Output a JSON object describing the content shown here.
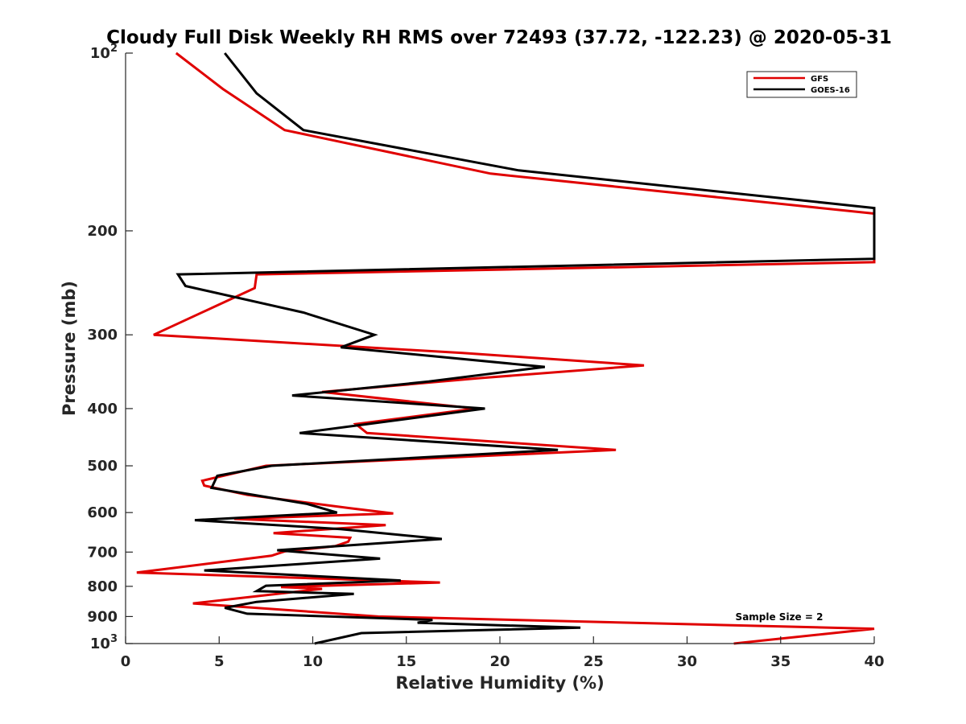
{
  "chart_data": {
    "type": "line",
    "title": "Cloudy Full Disk Weekly RH RMS over 72493 (37.72, -122.23) @ 2020-05-31",
    "xlabel": "Relative Humidity (%)",
    "ylabel": "Pressure (mb)",
    "xlim": [
      0,
      40
    ],
    "ylim": [
      100,
      1000
    ],
    "y_scale": "log",
    "y_reversed": true,
    "grid": false,
    "legend_position": "top-right",
    "x_ticks": [
      "0",
      "5",
      "10",
      "15",
      "20",
      "25",
      "30",
      "35",
      "40"
    ],
    "y_ticks": [
      {
        "value": 100,
        "base": "10",
        "exp": "2"
      },
      {
        "value": 200,
        "label": "200"
      },
      {
        "value": 300,
        "label": "300"
      },
      {
        "value": 400,
        "label": "400"
      },
      {
        "value": 500,
        "label": "500"
      },
      {
        "value": 600,
        "label": "600"
      },
      {
        "value": 700,
        "label": "700"
      },
      {
        "value": 800,
        "label": "800"
      },
      {
        "value": 900,
        "label": "900"
      },
      {
        "value": 1000,
        "base": "10",
        "exp": "3"
      }
    ],
    "annotation": "Sample Size = 2",
    "series": [
      {
        "name": "GFS",
        "color": "#e00000",
        "points": [
          [
            2.7,
            100
          ],
          [
            5.2,
            115
          ],
          [
            8.5,
            135
          ],
          [
            19.5,
            160
          ],
          [
            40,
            187
          ],
          [
            40,
            226
          ],
          [
            7.0,
            237
          ],
          [
            6.9,
            250
          ],
          [
            1.5,
            300
          ],
          [
            18.0,
            322
          ],
          [
            27.7,
            338
          ],
          [
            19.0,
            355
          ],
          [
            10.5,
            375
          ],
          [
            18.7,
            400
          ],
          [
            12.3,
            425
          ],
          [
            12.9,
            440
          ],
          [
            26.2,
            470
          ],
          [
            7.5,
            500
          ],
          [
            4.1,
            530
          ],
          [
            4.2,
            540
          ],
          [
            6.5,
            560
          ],
          [
            12.0,
            590
          ],
          [
            14.3,
            602
          ],
          [
            5.8,
            615
          ],
          [
            13.9,
            630
          ],
          [
            7.9,
            650
          ],
          [
            12.0,
            662
          ],
          [
            11.9,
            672
          ],
          [
            11.2,
            684
          ],
          [
            8.5,
            698
          ],
          [
            7.8,
            710
          ],
          [
            0.6,
            758
          ],
          [
            16.8,
            788
          ],
          [
            8.3,
            802
          ],
          [
            10.5,
            808
          ],
          [
            3.6,
            855
          ],
          [
            13.5,
            900
          ],
          [
            40,
            944
          ],
          [
            32.5,
            1000
          ]
        ]
      },
      {
        "name": "GOES-16",
        "color": "#000000",
        "points": [
          [
            5.3,
            100
          ],
          [
            7.0,
            117
          ],
          [
            9.5,
            135
          ],
          [
            21.0,
            158
          ],
          [
            40,
            183
          ],
          [
            40,
            223
          ],
          [
            2.8,
            237
          ],
          [
            3.2,
            248
          ],
          [
            9.5,
            275
          ],
          [
            13.3,
            300
          ],
          [
            11.5,
            315
          ],
          [
            22.4,
            340
          ],
          [
            16.2,
            360
          ],
          [
            8.9,
            380
          ],
          [
            19.2,
            400
          ],
          [
            9.3,
            440
          ],
          [
            23.1,
            470
          ],
          [
            7.8,
            500
          ],
          [
            4.9,
            520
          ],
          [
            4.6,
            545
          ],
          [
            9.7,
            580
          ],
          [
            11.3,
            600
          ],
          [
            3.7,
            618
          ],
          [
            11.5,
            640
          ],
          [
            16.9,
            665
          ],
          [
            8.1,
            695
          ],
          [
            13.6,
            718
          ],
          [
            4.2,
            752
          ],
          [
            14.7,
            782
          ],
          [
            7.5,
            798
          ],
          [
            7.0,
            815
          ],
          [
            12.2,
            824
          ],
          [
            7.0,
            850
          ],
          [
            5.3,
            870
          ],
          [
            6.5,
            890
          ],
          [
            16.4,
            912
          ],
          [
            15.6,
            922
          ],
          [
            24.3,
            940
          ],
          [
            12.6,
            960
          ],
          [
            10.1,
            1000
          ]
        ]
      }
    ]
  }
}
